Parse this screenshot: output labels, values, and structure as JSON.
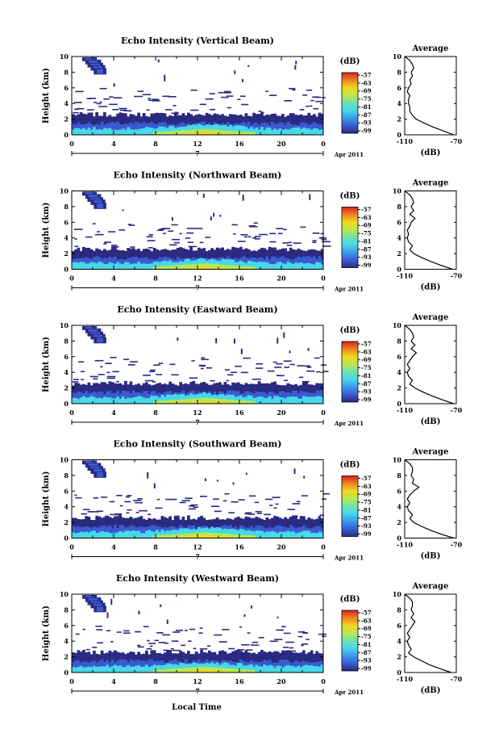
{
  "chart_data": {
    "type": "heatmap",
    "panels": [
      {
        "title": "Echo Intensity (Vertical Beam)"
      },
      {
        "title": "Echo Intensity (Northward Beam)"
      },
      {
        "title": "Echo Intensity (Eastward Beam)"
      },
      {
        "title": "Echo Intensity (Southward Beam)"
      },
      {
        "title": "Echo Intensity (Westward Beam)"
      }
    ],
    "ylabel": "Height (km)",
    "ylim": [
      0,
      10
    ],
    "yticks": [
      "0",
      "2",
      "4",
      "6",
      "8",
      "10"
    ],
    "xlim": [
      0,
      24
    ],
    "xticks": [
      "0",
      "4",
      "8",
      "12",
      "16",
      "20",
      "0"
    ],
    "xlabel": "Local Time",
    "date_day": "7",
    "date_label": "Apr 2011",
    "colorbar": {
      "unit": "(dB)",
      "ticks": [
        "-57",
        "-63",
        "-69",
        "-75",
        "-81",
        "-87",
        "-93",
        "-99"
      ],
      "colors": [
        "#2a2a80",
        "#3a5ad0",
        "#3a9ae8",
        "#48d8e8",
        "#70e0b0",
        "#b8e850",
        "#f0d820",
        "#f08020",
        "#d82020"
      ]
    },
    "average_profile": {
      "title": "Average",
      "xlabel": "(dB)",
      "xticks": [
        "-110",
        "-70"
      ],
      "xlim": [
        -110,
        -70
      ],
      "height_km": [
        0,
        0.5,
        1,
        1.5,
        2,
        2.5,
        3,
        3.5,
        4,
        4.5,
        5,
        5.5,
        6,
        6.5,
        7,
        7.5,
        8,
        8.5,
        9,
        9.5,
        10
      ],
      "profiles": [
        [
          -72,
          -80,
          -88,
          -95,
          -101,
          -104,
          -106,
          -106,
          -107,
          -107,
          -106,
          -108,
          -107,
          -105,
          -106,
          -104,
          -105,
          -103,
          -104,
          -106,
          -110
        ],
        [
          -73,
          -82,
          -90,
          -97,
          -103,
          -106,
          -104,
          -107,
          -108,
          -107,
          -108,
          -106,
          -105,
          -102,
          -106,
          -103,
          -105,
          -103,
          -104,
          -106,
          -110
        ],
        [
          -72,
          -81,
          -89,
          -96,
          -102,
          -106,
          -104,
          -107,
          -108,
          -106,
          -108,
          -106,
          -104,
          -101,
          -105,
          -102,
          -105,
          -103,
          -104,
          -106,
          -110
        ],
        [
          -72,
          -82,
          -90,
          -97,
          -103,
          -106,
          -104,
          -107,
          -108,
          -106,
          -108,
          -106,
          -103,
          -99,
          -104,
          -103,
          -105,
          -104,
          -104,
          -106,
          -110
        ],
        [
          -74,
          -83,
          -91,
          -97,
          -103,
          -107,
          -105,
          -107,
          -108,
          -106,
          -108,
          -106,
          -104,
          -102,
          -105,
          -103,
          -105,
          -104,
          -104,
          -106,
          -110
        ]
      ]
    }
  }
}
